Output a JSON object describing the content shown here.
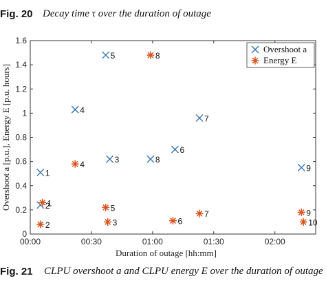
{
  "top_caption": {
    "fig": "Fig. 20",
    "text": "Decay time τ over the duration of outage"
  },
  "bottom_caption": {
    "fig": "Fig. 21",
    "text": "CLPU overshoot a and CLPU energy E over the duration of outage"
  },
  "colors": {
    "overshoot": "#2a6fb5",
    "energy": "#d95319",
    "axis": "#333333"
  },
  "chart_data": {
    "type": "scatter",
    "xlabel": "Duration of outage [hh:mm]",
    "ylabel": "Overshoot a [p.u.], Energy E [p.u. hours]",
    "xlim": [
      0,
      140
    ],
    "ylim": [
      0,
      1.6
    ],
    "xticks": [
      0,
      30,
      60,
      90,
      120
    ],
    "xtick_labels": [
      "00:00",
      "00:30",
      "01:00",
      "01:30",
      "02:00"
    ],
    "yticks": [
      0,
      0.2,
      0.4,
      0.6,
      0.8,
      1,
      1.2,
      1.4,
      1.6
    ],
    "ytick_labels": [
      "0",
      "0.2",
      "0.4",
      "0.6",
      "0.8",
      "1",
      "1.2",
      "1.4",
      "1.6"
    ],
    "legend_position": "top-right",
    "series": [
      {
        "name": "Overshoot a",
        "marker": "x",
        "points": [
          {
            "x": 5,
            "y": 0.51,
            "label": "1"
          },
          {
            "x": 5,
            "y": 0.24,
            "label": "2"
          },
          {
            "x": 39,
            "y": 0.62,
            "label": "3"
          },
          {
            "x": 22,
            "y": 1.03,
            "label": "4"
          },
          {
            "x": 37,
            "y": 1.48,
            "label": "5"
          },
          {
            "x": 71,
            "y": 0.7,
            "label": "6"
          },
          {
            "x": 83,
            "y": 0.96,
            "label": "7"
          },
          {
            "x": 59,
            "y": 0.62,
            "label": "8"
          },
          {
            "x": 133,
            "y": 0.55,
            "label": "9"
          }
        ]
      },
      {
        "name": "Energy E",
        "marker": "asterisk",
        "points": [
          {
            "x": 6,
            "y": 0.26,
            "label": "1"
          },
          {
            "x": 5,
            "y": 0.08,
            "label": "2"
          },
          {
            "x": 38,
            "y": 0.1,
            "label": "3"
          },
          {
            "x": 22,
            "y": 0.58,
            "label": "4"
          },
          {
            "x": 37,
            "y": 0.22,
            "label": "5"
          },
          {
            "x": 70,
            "y": 0.11,
            "label": "6"
          },
          {
            "x": 83,
            "y": 0.17,
            "label": "7"
          },
          {
            "x": 59,
            "y": 1.48,
            "label": "8"
          },
          {
            "x": 133,
            "y": 0.18,
            "label": "9"
          },
          {
            "x": 134,
            "y": 0.1,
            "label": "10"
          }
        ]
      }
    ]
  }
}
